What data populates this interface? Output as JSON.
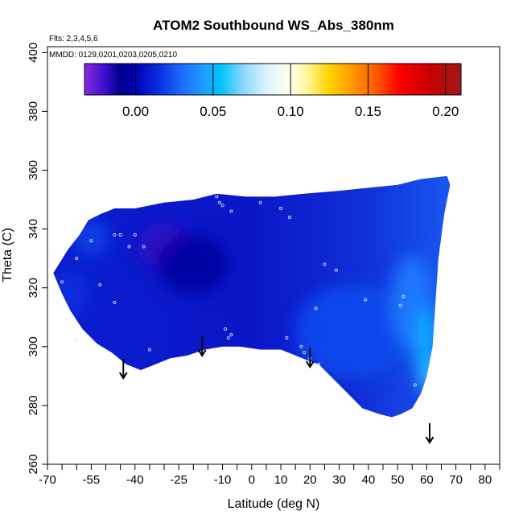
{
  "chart_data": {
    "type": "heatmap",
    "title": "ATOM2 Southbound WS_Abs_380nm",
    "subtitle_lines": [
      "Flts: 2,3,4,5,6",
      "MMDD: 0129,0201,0203,0205,0210"
    ],
    "xlabel": "Latitude (deg N)",
    "ylabel": "Theta (C)",
    "xlim": [
      -70,
      85
    ],
    "ylim": [
      260,
      402
    ],
    "x_ticks_labeled": [
      -70,
      -55,
      -40,
      -25,
      -10,
      0,
      10,
      20,
      30,
      40,
      50,
      60,
      70,
      80
    ],
    "x_ticks_all": [
      -70,
      -65,
      -60,
      -55,
      -50,
      -45,
      -40,
      -35,
      -30,
      -25,
      -20,
      -15,
      -10,
      -5,
      0,
      5,
      10,
      15,
      20,
      25,
      30,
      35,
      40,
      45,
      50,
      55,
      60,
      65,
      70,
      75,
      80,
      85
    ],
    "y_ticks": [
      260,
      280,
      300,
      320,
      340,
      360,
      380,
      400
    ],
    "colorbar": {
      "range": [
        -0.033,
        0.21
      ],
      "ticks": [
        0.0,
        0.05,
        0.1,
        0.15,
        0.2
      ],
      "tick_labels": [
        "0.00",
        "0.05",
        "0.10",
        "0.15",
        "0.20"
      ],
      "gridlines": [
        0.0,
        0.05,
        0.1,
        0.15,
        0.2
      ],
      "colors": [
        {
          "v": -0.033,
          "c": "#8a2be2"
        },
        {
          "v": -0.02,
          "c": "#3c0fcf"
        },
        {
          "v": -0.01,
          "c": "#00008b"
        },
        {
          "v": 0.0,
          "c": "#0000b8"
        },
        {
          "v": 0.015,
          "c": "#0a2fe0"
        },
        {
          "v": 0.03,
          "c": "#1e6cff"
        },
        {
          "v": 0.045,
          "c": "#1ea0ff"
        },
        {
          "v": 0.055,
          "c": "#00c2ff"
        },
        {
          "v": 0.07,
          "c": "#8fd8ff"
        },
        {
          "v": 0.085,
          "c": "#dff3ff"
        },
        {
          "v": 0.1,
          "c": "#ffffea"
        },
        {
          "v": 0.11,
          "c": "#fff7a0"
        },
        {
          "v": 0.125,
          "c": "#ffd200"
        },
        {
          "v": 0.14,
          "c": "#ff9800"
        },
        {
          "v": 0.155,
          "c": "#ff5a00"
        },
        {
          "v": 0.17,
          "c": "#ff0000"
        },
        {
          "v": 0.19,
          "c": "#c80000"
        },
        {
          "v": 0.21,
          "c": "#a01818"
        }
      ]
    },
    "field_polygon": [
      [
        -68,
        325
      ],
      [
        -63,
        333
      ],
      [
        -59,
        338
      ],
      [
        -56,
        343
      ],
      [
        -52,
        345
      ],
      [
        -47,
        347
      ],
      [
        -40,
        347
      ],
      [
        -30,
        349
      ],
      [
        -20,
        350
      ],
      [
        -12,
        352
      ],
      [
        -2,
        351
      ],
      [
        8,
        351
      ],
      [
        18,
        352
      ],
      [
        30,
        353
      ],
      [
        40,
        354
      ],
      [
        50,
        355
      ],
      [
        58,
        357
      ],
      [
        67,
        358
      ],
      [
        68,
        355
      ],
      [
        66,
        345
      ],
      [
        64,
        330
      ],
      [
        63,
        315
      ],
      [
        62,
        300
      ],
      [
        60,
        290
      ],
      [
        58,
        284
      ],
      [
        55,
        279
      ],
      [
        51,
        277
      ],
      [
        48,
        276
      ],
      [
        44,
        277
      ],
      [
        38,
        279
      ],
      [
        33,
        284
      ],
      [
        28,
        289
      ],
      [
        23,
        294
      ],
      [
        20,
        295
      ],
      [
        15,
        297
      ],
      [
        10,
        299
      ],
      [
        3,
        299
      ],
      [
        -4,
        300
      ],
      [
        -10,
        300
      ],
      [
        -16,
        299
      ],
      [
        -22,
        297
      ],
      [
        -28,
        296
      ],
      [
        -33,
        294
      ],
      [
        -38,
        292
      ],
      [
        -43,
        294
      ],
      [
        -48,
        298
      ],
      [
        -53,
        301
      ],
      [
        -58,
        306
      ],
      [
        -62,
        312
      ],
      [
        -65,
        318
      ]
    ],
    "field_patches": [
      {
        "x": -30,
        "y": 334,
        "rx": 9,
        "ry": 8,
        "value": -0.018
      },
      {
        "x": -20,
        "y": 328,
        "rx": 12,
        "ry": 10,
        "value": -0.006
      },
      {
        "x": -55,
        "y": 337,
        "rx": 6,
        "ry": 6,
        "value": 0.02
      },
      {
        "x": -62,
        "y": 318,
        "rx": 6,
        "ry": 8,
        "value": 0.015
      },
      {
        "x": 35,
        "y": 305,
        "rx": 20,
        "ry": 16,
        "value": 0.022
      },
      {
        "x": 55,
        "y": 315,
        "rx": 7,
        "ry": 16,
        "value": 0.035
      },
      {
        "x": 60,
        "y": 300,
        "rx": 4,
        "ry": 14,
        "value": 0.05
      },
      {
        "x": 61,
        "y": 290,
        "rx": 3,
        "ry": 6,
        "value": 0.06
      }
    ],
    "sample_points": [
      [
        -65,
        322
      ],
      [
        -60,
        330
      ],
      [
        -55,
        336
      ],
      [
        -53,
        345
      ],
      [
        -47,
        338
      ],
      [
        -45,
        338
      ],
      [
        -42,
        334
      ],
      [
        -40,
        338
      ],
      [
        -37,
        334
      ],
      [
        -52,
        321
      ],
      [
        -47,
        315
      ],
      [
        -60,
        302
      ],
      [
        -35,
        299
      ],
      [
        -12,
        351
      ],
      [
        -11,
        349
      ],
      [
        -10,
        348
      ],
      [
        -7,
        346
      ],
      [
        3,
        349
      ],
      [
        10,
        347
      ],
      [
        13,
        344
      ],
      [
        -9,
        306
      ],
      [
        -8,
        303
      ],
      [
        -7,
        304
      ],
      [
        12,
        303
      ],
      [
        17,
        300
      ],
      [
        18,
        298
      ],
      [
        20,
        296
      ],
      [
        23,
        294
      ],
      [
        25,
        328
      ],
      [
        29,
        326
      ],
      [
        22,
        313
      ],
      [
        39,
        316
      ],
      [
        52,
        317
      ],
      [
        51,
        314
      ],
      [
        56,
        287
      ]
    ],
    "arrows": [
      -44,
      -17,
      20,
      61
    ]
  }
}
